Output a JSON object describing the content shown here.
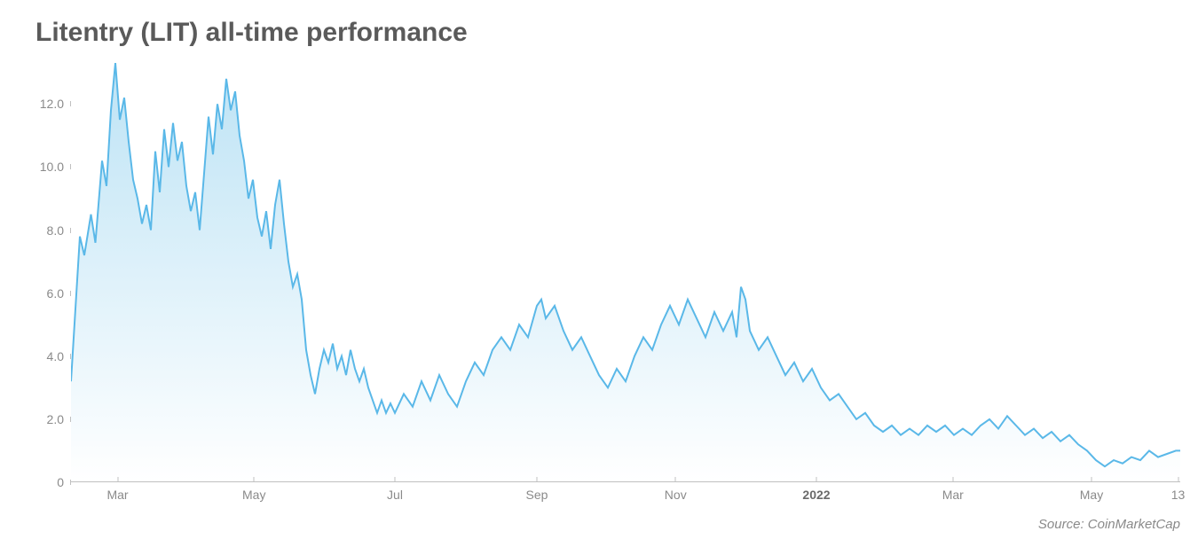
{
  "chart": {
    "type": "area",
    "title": "Litentry (LIT) all-time performance",
    "title_fontsize": 30,
    "title_color": "#5a5a5a",
    "source": "Source: CoinMarketCap",
    "source_fontsize": 15,
    "background_color": "#ffffff",
    "line_color": "#5ab8e8",
    "line_width": 2,
    "fill_gradient_top": "#bde3f5",
    "fill_gradient_bottom": "#ffffff",
    "axis_label_color": "#8a8a8a",
    "axis_label_fontsize": 14,
    "tick_color": "#c0c0c0",
    "ylim": [
      0,
      13.5
    ],
    "yticks": [
      0,
      2.0,
      4.0,
      6.0,
      8.0,
      10.0,
      12.0
    ],
    "ytick_labels": [
      "0",
      "2.0",
      "4.0",
      "6.0",
      "8.0",
      "10.0",
      "12.0"
    ],
    "xticks": [
      {
        "label": "Mar",
        "pos": 0.042,
        "bold": false
      },
      {
        "label": "May",
        "pos": 0.165,
        "bold": false
      },
      {
        "label": "Jul",
        "pos": 0.292,
        "bold": false
      },
      {
        "label": "Sep",
        "pos": 0.42,
        "bold": false
      },
      {
        "label": "Nov",
        "pos": 0.545,
        "bold": false
      },
      {
        "label": "2022",
        "pos": 0.672,
        "bold": true
      },
      {
        "label": "Mar",
        "pos": 0.795,
        "bold": false
      },
      {
        "label": "May",
        "pos": 0.92,
        "bold": false
      },
      {
        "label": "13",
        "pos": 0.998,
        "bold": false
      }
    ],
    "series": [
      {
        "x": 0.0,
        "y": 3.2
      },
      {
        "x": 0.008,
        "y": 7.8
      },
      {
        "x": 0.012,
        "y": 7.2
      },
      {
        "x": 0.018,
        "y": 8.5
      },
      {
        "x": 0.022,
        "y": 7.6
      },
      {
        "x": 0.028,
        "y": 10.2
      },
      {
        "x": 0.032,
        "y": 9.4
      },
      {
        "x": 0.036,
        "y": 11.8
      },
      {
        "x": 0.04,
        "y": 13.3
      },
      {
        "x": 0.044,
        "y": 11.5
      },
      {
        "x": 0.048,
        "y": 12.2
      },
      {
        "x": 0.052,
        "y": 10.8
      },
      {
        "x": 0.056,
        "y": 9.6
      },
      {
        "x": 0.06,
        "y": 9.0
      },
      {
        "x": 0.064,
        "y": 8.2
      },
      {
        "x": 0.068,
        "y": 8.8
      },
      {
        "x": 0.072,
        "y": 8.0
      },
      {
        "x": 0.076,
        "y": 10.5
      },
      {
        "x": 0.08,
        "y": 9.2
      },
      {
        "x": 0.084,
        "y": 11.2
      },
      {
        "x": 0.088,
        "y": 10.0
      },
      {
        "x": 0.092,
        "y": 11.4
      },
      {
        "x": 0.096,
        "y": 10.2
      },
      {
        "x": 0.1,
        "y": 10.8
      },
      {
        "x": 0.104,
        "y": 9.4
      },
      {
        "x": 0.108,
        "y": 8.6
      },
      {
        "x": 0.112,
        "y": 9.2
      },
      {
        "x": 0.116,
        "y": 8.0
      },
      {
        "x": 0.12,
        "y": 9.8
      },
      {
        "x": 0.124,
        "y": 11.6
      },
      {
        "x": 0.128,
        "y": 10.4
      },
      {
        "x": 0.132,
        "y": 12.0
      },
      {
        "x": 0.136,
        "y": 11.2
      },
      {
        "x": 0.14,
        "y": 12.8
      },
      {
        "x": 0.144,
        "y": 11.8
      },
      {
        "x": 0.148,
        "y": 12.4
      },
      {
        "x": 0.152,
        "y": 11.0
      },
      {
        "x": 0.156,
        "y": 10.2
      },
      {
        "x": 0.16,
        "y": 9.0
      },
      {
        "x": 0.164,
        "y": 9.6
      },
      {
        "x": 0.168,
        "y": 8.4
      },
      {
        "x": 0.172,
        "y": 7.8
      },
      {
        "x": 0.176,
        "y": 8.6
      },
      {
        "x": 0.18,
        "y": 7.4
      },
      {
        "x": 0.184,
        "y": 8.8
      },
      {
        "x": 0.188,
        "y": 9.6
      },
      {
        "x": 0.192,
        "y": 8.2
      },
      {
        "x": 0.196,
        "y": 7.0
      },
      {
        "x": 0.2,
        "y": 6.2
      },
      {
        "x": 0.204,
        "y": 6.6
      },
      {
        "x": 0.208,
        "y": 5.8
      },
      {
        "x": 0.212,
        "y": 4.2
      },
      {
        "x": 0.216,
        "y": 3.4
      },
      {
        "x": 0.22,
        "y": 2.8
      },
      {
        "x": 0.224,
        "y": 3.6
      },
      {
        "x": 0.228,
        "y": 4.2
      },
      {
        "x": 0.232,
        "y": 3.8
      },
      {
        "x": 0.236,
        "y": 4.4
      },
      {
        "x": 0.24,
        "y": 3.6
      },
      {
        "x": 0.244,
        "y": 4.0
      },
      {
        "x": 0.248,
        "y": 3.4
      },
      {
        "x": 0.252,
        "y": 4.2
      },
      {
        "x": 0.256,
        "y": 3.6
      },
      {
        "x": 0.26,
        "y": 3.2
      },
      {
        "x": 0.264,
        "y": 3.6
      },
      {
        "x": 0.268,
        "y": 3.0
      },
      {
        "x": 0.272,
        "y": 2.6
      },
      {
        "x": 0.276,
        "y": 2.2
      },
      {
        "x": 0.28,
        "y": 2.6
      },
      {
        "x": 0.284,
        "y": 2.2
      },
      {
        "x": 0.288,
        "y": 2.5
      },
      {
        "x": 0.292,
        "y": 2.2
      },
      {
        "x": 0.3,
        "y": 2.8
      },
      {
        "x": 0.308,
        "y": 2.4
      },
      {
        "x": 0.316,
        "y": 3.2
      },
      {
        "x": 0.324,
        "y": 2.6
      },
      {
        "x": 0.332,
        "y": 3.4
      },
      {
        "x": 0.34,
        "y": 2.8
      },
      {
        "x": 0.348,
        "y": 2.4
      },
      {
        "x": 0.356,
        "y": 3.2
      },
      {
        "x": 0.364,
        "y": 3.8
      },
      {
        "x": 0.372,
        "y": 3.4
      },
      {
        "x": 0.38,
        "y": 4.2
      },
      {
        "x": 0.388,
        "y": 4.6
      },
      {
        "x": 0.396,
        "y": 4.2
      },
      {
        "x": 0.404,
        "y": 5.0
      },
      {
        "x": 0.412,
        "y": 4.6
      },
      {
        "x": 0.42,
        "y": 5.6
      },
      {
        "x": 0.424,
        "y": 5.8
      },
      {
        "x": 0.428,
        "y": 5.2
      },
      {
        "x": 0.436,
        "y": 5.6
      },
      {
        "x": 0.444,
        "y": 4.8
      },
      {
        "x": 0.452,
        "y": 4.2
      },
      {
        "x": 0.46,
        "y": 4.6
      },
      {
        "x": 0.468,
        "y": 4.0
      },
      {
        "x": 0.476,
        "y": 3.4
      },
      {
        "x": 0.484,
        "y": 3.0
      },
      {
        "x": 0.492,
        "y": 3.6
      },
      {
        "x": 0.5,
        "y": 3.2
      },
      {
        "x": 0.508,
        "y": 4.0
      },
      {
        "x": 0.516,
        "y": 4.6
      },
      {
        "x": 0.524,
        "y": 4.2
      },
      {
        "x": 0.532,
        "y": 5.0
      },
      {
        "x": 0.54,
        "y": 5.6
      },
      {
        "x": 0.548,
        "y": 5.0
      },
      {
        "x": 0.556,
        "y": 5.8
      },
      {
        "x": 0.564,
        "y": 5.2
      },
      {
        "x": 0.572,
        "y": 4.6
      },
      {
        "x": 0.58,
        "y": 5.4
      },
      {
        "x": 0.588,
        "y": 4.8
      },
      {
        "x": 0.596,
        "y": 5.4
      },
      {
        "x": 0.6,
        "y": 4.6
      },
      {
        "x": 0.604,
        "y": 6.2
      },
      {
        "x": 0.608,
        "y": 5.8
      },
      {
        "x": 0.612,
        "y": 4.8
      },
      {
        "x": 0.62,
        "y": 4.2
      },
      {
        "x": 0.628,
        "y": 4.6
      },
      {
        "x": 0.636,
        "y": 4.0
      },
      {
        "x": 0.644,
        "y": 3.4
      },
      {
        "x": 0.652,
        "y": 3.8
      },
      {
        "x": 0.66,
        "y": 3.2
      },
      {
        "x": 0.668,
        "y": 3.6
      },
      {
        "x": 0.676,
        "y": 3.0
      },
      {
        "x": 0.684,
        "y": 2.6
      },
      {
        "x": 0.692,
        "y": 2.8
      },
      {
        "x": 0.7,
        "y": 2.4
      },
      {
        "x": 0.708,
        "y": 2.0
      },
      {
        "x": 0.716,
        "y": 2.2
      },
      {
        "x": 0.724,
        "y": 1.8
      },
      {
        "x": 0.732,
        "y": 1.6
      },
      {
        "x": 0.74,
        "y": 1.8
      },
      {
        "x": 0.748,
        "y": 1.5
      },
      {
        "x": 0.756,
        "y": 1.7
      },
      {
        "x": 0.764,
        "y": 1.5
      },
      {
        "x": 0.772,
        "y": 1.8
      },
      {
        "x": 0.78,
        "y": 1.6
      },
      {
        "x": 0.788,
        "y": 1.8
      },
      {
        "x": 0.796,
        "y": 1.5
      },
      {
        "x": 0.804,
        "y": 1.7
      },
      {
        "x": 0.812,
        "y": 1.5
      },
      {
        "x": 0.82,
        "y": 1.8
      },
      {
        "x": 0.828,
        "y": 2.0
      },
      {
        "x": 0.836,
        "y": 1.7
      },
      {
        "x": 0.844,
        "y": 2.1
      },
      {
        "x": 0.852,
        "y": 1.8
      },
      {
        "x": 0.86,
        "y": 1.5
      },
      {
        "x": 0.868,
        "y": 1.7
      },
      {
        "x": 0.876,
        "y": 1.4
      },
      {
        "x": 0.884,
        "y": 1.6
      },
      {
        "x": 0.892,
        "y": 1.3
      },
      {
        "x": 0.9,
        "y": 1.5
      },
      {
        "x": 0.908,
        "y": 1.2
      },
      {
        "x": 0.916,
        "y": 1.0
      },
      {
        "x": 0.924,
        "y": 0.7
      },
      {
        "x": 0.932,
        "y": 0.5
      },
      {
        "x": 0.94,
        "y": 0.7
      },
      {
        "x": 0.948,
        "y": 0.6
      },
      {
        "x": 0.956,
        "y": 0.8
      },
      {
        "x": 0.964,
        "y": 0.7
      },
      {
        "x": 0.972,
        "y": 1.0
      },
      {
        "x": 0.98,
        "y": 0.8
      },
      {
        "x": 0.988,
        "y": 0.9
      },
      {
        "x": 0.996,
        "y": 1.0
      },
      {
        "x": 1.0,
        "y": 1.0
      }
    ]
  }
}
